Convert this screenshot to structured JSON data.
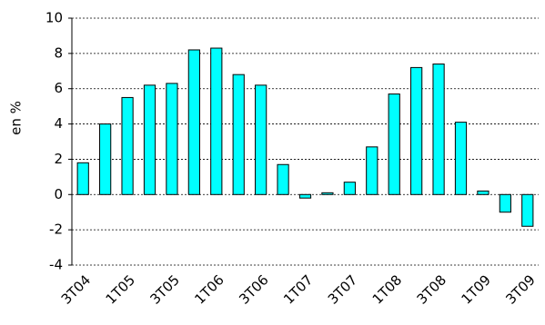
{
  "chart_data": {
    "type": "bar",
    "y_label": "en %",
    "categories": [
      "3T04",
      null,
      "1T05",
      null,
      "3T05",
      null,
      "1T06",
      null,
      "3T06",
      null,
      "1T07",
      null,
      "3T07",
      null,
      "1T08",
      null,
      "3T08",
      null,
      "1T09",
      null,
      "3T09"
    ],
    "values": [
      1.8,
      4.0,
      5.5,
      6.2,
      6.3,
      8.2,
      8.3,
      6.8,
      6.2,
      1.7,
      -0.2,
      0.1,
      0.7,
      2.7,
      5.7,
      7.2,
      7.4,
      4.1,
      0.2,
      -1.0,
      -1.8
    ],
    "color": "#00ffff",
    "ylim": [
      -4,
      10
    ],
    "yticks": [
      -4,
      -2,
      0,
      2,
      4,
      6,
      8,
      10
    ],
    "grid": true
  }
}
